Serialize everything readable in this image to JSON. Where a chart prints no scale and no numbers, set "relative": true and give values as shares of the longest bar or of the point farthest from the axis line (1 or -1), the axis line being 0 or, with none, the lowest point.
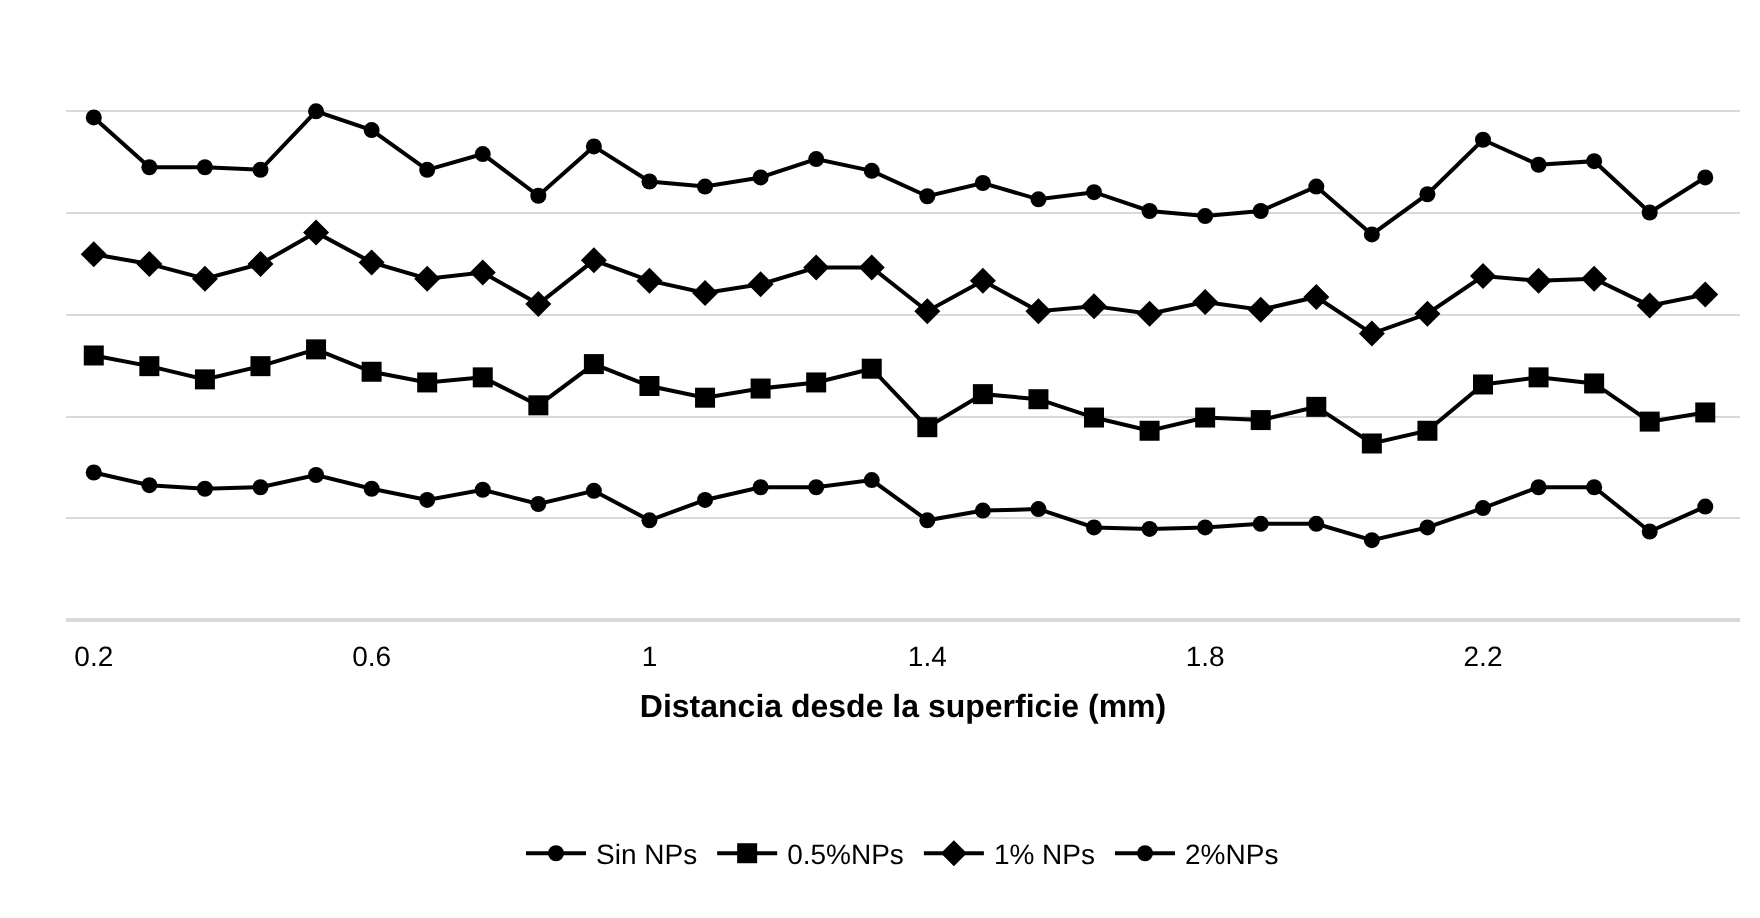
{
  "chart_data": {
    "type": "line",
    "relative": true,
    "xlabel": "Distancia desde la superficie (mm)",
    "x": [
      0.2,
      0.28,
      0.36,
      0.44,
      0.52,
      0.6,
      0.68,
      0.76,
      0.84,
      0.92,
      1,
      1.08,
      1.16,
      1.24,
      1.32,
      1.4,
      1.48,
      1.56,
      1.64,
      1.72,
      1.8,
      1.88,
      1.96,
      2.04,
      2.12,
      2.2,
      2.28,
      2.36,
      2.44,
      2.52
    ],
    "xlim": [
      0.16,
      2.57
    ],
    "xticks": [
      0.2,
      0.6,
      1,
      1.4,
      1.8,
      2.2
    ],
    "grid": "y",
    "legend": "bottom",
    "line_style": "solid",
    "series": [
      {
        "name": "Sin NPs",
        "color": "#000000",
        "marker": "circle",
        "values": [
          0.29,
          0.265,
          0.258,
          0.261,
          0.285,
          0.258,
          0.236,
          0.256,
          0.228,
          0.254,
          0.196,
          0.236,
          0.261,
          0.261,
          0.275,
          0.196,
          0.215,
          0.218,
          0.182,
          0.179,
          0.182,
          0.189,
          0.189,
          0.157,
          0.182,
          0.22,
          0.261,
          0.261,
          0.174,
          0.223
        ]
      },
      {
        "name": "0.5%NPs",
        "color": "#000000",
        "marker": "square",
        "values": [
          0.52,
          0.499,
          0.473,
          0.499,
          0.532,
          0.488,
          0.467,
          0.477,
          0.422,
          0.503,
          0.46,
          0.437,
          0.455,
          0.467,
          0.494,
          0.379,
          0.444,
          0.434,
          0.398,
          0.372,
          0.398,
          0.393,
          0.419,
          0.347,
          0.372,
          0.463,
          0.477,
          0.465,
          0.39,
          0.408
        ]
      },
      {
        "name": "1% NPs",
        "color": "#000000",
        "marker": "diamond",
        "values": [
          0.719,
          0.7,
          0.671,
          0.7,
          0.762,
          0.703,
          0.671,
          0.683,
          0.621,
          0.707,
          0.667,
          0.643,
          0.66,
          0.693,
          0.693,
          0.607,
          0.667,
          0.607,
          0.617,
          0.602,
          0.625,
          0.61,
          0.635,
          0.563,
          0.602,
          0.676,
          0.667,
          0.671,
          0.618,
          0.64
        ]
      },
      {
        "name": "2%NPs",
        "color": "#000000",
        "marker": "circle",
        "values": [
          0.988,
          0.89,
          0.89,
          0.885,
          1,
          0.963,
          0.885,
          0.916,
          0.834,
          0.931,
          0.862,
          0.852,
          0.87,
          0.906,
          0.883,
          0.833,
          0.859,
          0.827,
          0.841,
          0.804,
          0.794,
          0.804,
          0.852,
          0.758,
          0.837,
          0.944,
          0.895,
          0.902,
          0.801,
          0.87
        ]
      }
    ]
  }
}
